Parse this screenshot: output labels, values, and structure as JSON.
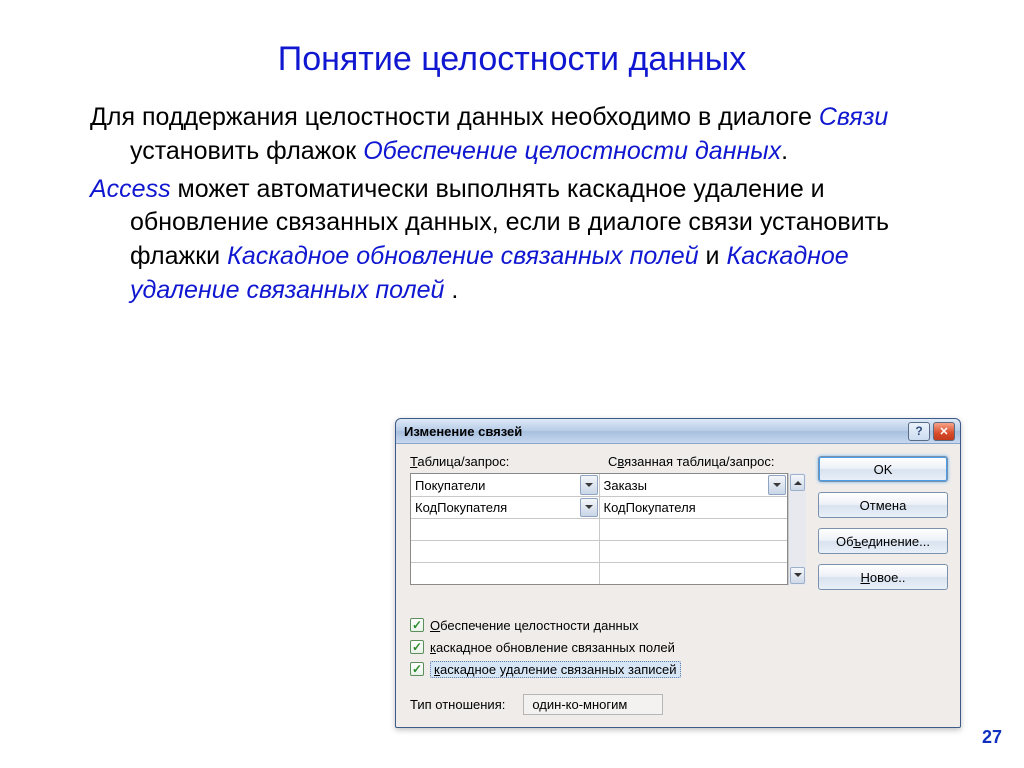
{
  "slide": {
    "title": "Понятие целостности данных",
    "page_number": "27"
  },
  "text": {
    "p1_a": "Для поддержания целостности данных необходимо в диалоге ",
    "p1_b": "Связи",
    "p1_c": " установить флажок ",
    "p1_d": "Обеспечение целостности данных",
    "p1_e": ".",
    "p2_a": "Access",
    "p2_b": " может автоматически выполнять каскадное удаление и обновление связанных данных, если в диалоге связи установить флажки ",
    "p2_c": "Каскадное обновление связанных полей",
    "p2_d": " и ",
    "p2_e": "Каскадное  удаление связанных полей",
    "p2_f": " ."
  },
  "dialog": {
    "title": "Изменение связей",
    "label_table": "Таблица/запрос:",
    "label_linked_pre": "С",
    "label_linked_u": "в",
    "label_linked_post": "язанная таблица/запрос:",
    "combo_left": "Покупатели",
    "combo_right": "Заказы",
    "field_left": "КодПокупателя",
    "field_right": "КодПокупателя",
    "chk1_pre": "",
    "chk1_u": "О",
    "chk1_post": "беспечение целостности данных",
    "chk2_u": "к",
    "chk2_post": "аскадное обновление связанных полей",
    "chk3_u": "к",
    "chk3_post": "аскадное удаление связанных записей",
    "type_label": "Тип отношения:",
    "type_value": "один-ко-многим",
    "buttons": {
      "ok": "OK",
      "cancel": "Отмена",
      "join_pre": "Об",
      "join_u": "ъ",
      "join_post": "единение...",
      "new_u": "Н",
      "new_post": "овое.."
    }
  },
  "colors": {
    "title_color": "#1017d0",
    "link_blue": "#1017d0",
    "page_num_color": "#1030c0",
    "dialog_bg": "#efecea",
    "titlebar_grad_top": "#dee9f7",
    "titlebar_grad_bot": "#c7d8ef",
    "close_bg": "#d84c2a",
    "checkbox_green": "#2c8b2c"
  }
}
